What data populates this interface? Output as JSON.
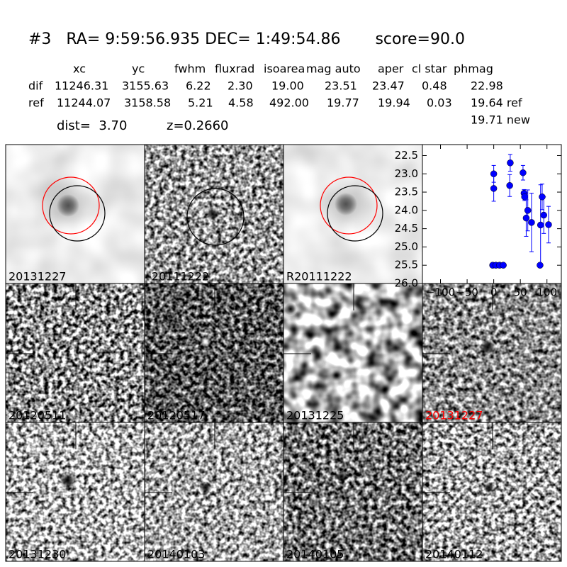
{
  "header": {
    "title": "#3   RA= 9:59:56.935 DEC= 1:49:54.86       score=90.0"
  },
  "table": {
    "columns": [
      "xc",
      "yc",
      "fwhm",
      "fluxrad",
      "isoarea",
      "mag auto",
      "aper",
      "cl star",
      "phmag"
    ],
    "rows": [
      [
        "dif",
        "11246.31",
        "3155.63",
        "6.22",
        "2.30",
        "19.00",
        "23.51",
        "23.47",
        "0.48",
        "22.98"
      ],
      [
        "ref",
        "11244.07",
        "3158.58",
        "5.21",
        "4.58",
        "492.00",
        "19.77",
        "19.94",
        "0.03",
        "19.64 ref"
      ]
    ],
    "note": "19.71 new"
  },
  "dist": "dist=  3.70",
  "z": "z=0.2660",
  "panels": [
    {
      "label": "20131227",
      "color": "#000000"
    },
    {
      "label": "-20111222",
      "color": "#000000"
    },
    {
      "label": "R20111222",
      "color": "#000000"
    },
    {
      "label": "20120511",
      "color": "#000000"
    },
    {
      "label": "20120517",
      "color": "#000000"
    },
    {
      "label": "20131225",
      "color": "#000000"
    },
    {
      "label": "20131227",
      "color": "#ff0000"
    },
    {
      "label": "20131230",
      "color": "#000000"
    },
    {
      "label": "20140103",
      "color": "#000000"
    },
    {
      "label": "20140105",
      "color": "#000000"
    },
    {
      "label": "20140112",
      "color": "#000000"
    }
  ],
  "chart_data": {
    "type": "scatter",
    "color": "#0000ff",
    "invert_y": true,
    "xlim": [
      -134,
      127
    ],
    "ylim": [
      22.2,
      26.0
    ],
    "xticks": [
      {
        "value": -100,
        "label": "−100"
      },
      {
        "value": -50,
        "label": "−50"
      },
      0,
      50,
      100
    ],
    "yticks": [
      22.5,
      {
        "value": 23,
        "label": "23.0"
      },
      23.5,
      {
        "value": 24,
        "label": "24.0"
      },
      24.5,
      {
        "value": 25,
        "label": "25.0"
      },
      25.5,
      {
        "value": 26,
        "label": "26.0"
      }
    ],
    "x": [
      0,
      0,
      -2,
      4,
      11,
      18,
      30,
      31,
      55,
      57,
      58,
      61,
      64,
      71,
      87,
      88,
      91,
      94,
      103
    ],
    "values": [
      23.0,
      23.4,
      25.5,
      25.5,
      25.5,
      25.5,
      23.32,
      22.7,
      22.97,
      23.53,
      23.63,
      24.21,
      24.0,
      24.33,
      25.5,
      24.4,
      23.63,
      24.13,
      24.39
    ],
    "errors": [
      0.23,
      0.35,
      0.03,
      0.03,
      0.03,
      0.03,
      0.3,
      0.23,
      0.2,
      0.1,
      0.1,
      0.5,
      0.56,
      0.8,
      0.03,
      1.1,
      0.35,
      0.5,
      0.5
    ]
  }
}
